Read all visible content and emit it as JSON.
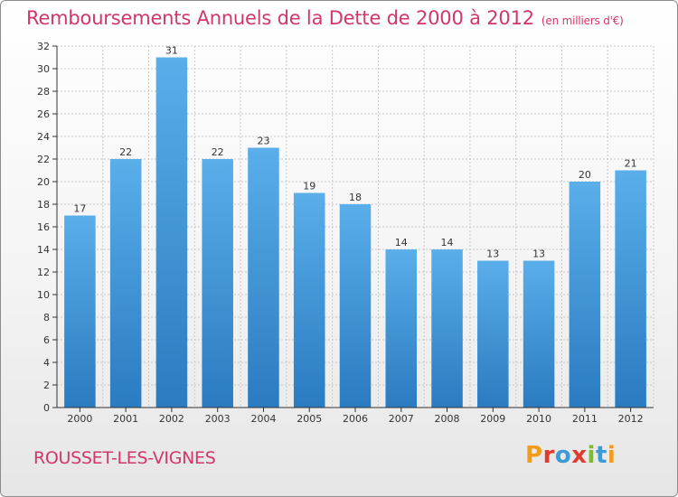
{
  "title": "Remboursements Annuels de la Dette de 2000 à 2012",
  "unit": "(en milliers d'€)",
  "commune": "ROUSSET-LES-VIGNES",
  "logo_text": "Proxiti",
  "colors": {
    "title": "#d2366a",
    "bar_light": "#5aaeea",
    "bar_dark": "#2a7bc0",
    "grid": "#c8c8c8",
    "axis": "#333333"
  },
  "chart_data": {
    "type": "bar",
    "categories": [
      "2000",
      "2001",
      "2002",
      "2003",
      "2004",
      "2005",
      "2006",
      "2007",
      "2008",
      "2009",
      "2010",
      "2011",
      "2012"
    ],
    "values": [
      17,
      22,
      31,
      22,
      23,
      19,
      18,
      14,
      14,
      13,
      13,
      20,
      21
    ],
    "data_labels": [
      "17",
      "22",
      "31",
      "22",
      "23",
      "19",
      "18",
      "14",
      "14",
      "13",
      "13",
      "20",
      "21"
    ],
    "ylim": [
      0,
      32
    ],
    "yticks": [
      0,
      2,
      4,
      6,
      8,
      10,
      12,
      14,
      16,
      18,
      20,
      22,
      24,
      26,
      28,
      30,
      32
    ],
    "grid": true,
    "legend": "none"
  }
}
